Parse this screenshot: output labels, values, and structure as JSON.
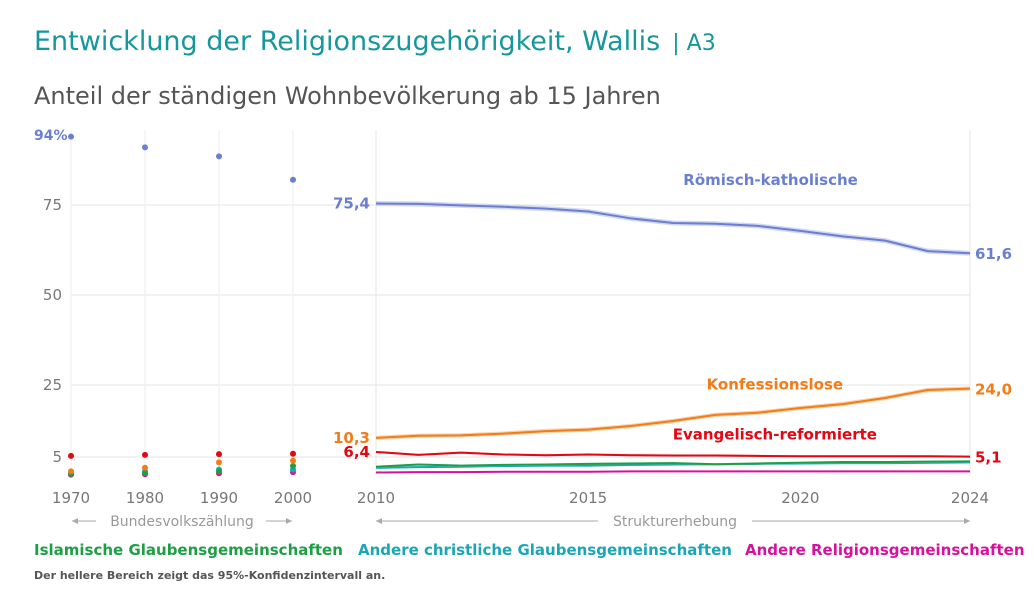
{
  "header": {
    "title": "Entwicklung der Religionszugehörigkeit, Wallis",
    "code": "A3",
    "subtitle": "Anteil der ständigen Wohnbevölkerung ab 15 Jahren"
  },
  "legend": {
    "items": [
      {
        "label": "Islamische Glaubensgemeinschaften",
        "color": "#1e9e45"
      },
      {
        "label": "Andere christliche Glaubensgemeinschaften",
        "color": "#1aa6b5"
      },
      {
        "label": "Andere Religionsgemeinschaften",
        "color": "#d6119c"
      }
    ],
    "note": "Der hellere Bereich zeigt das 95%-Konfidenzintervall an."
  },
  "chart_data": {
    "type": "line",
    "ylim": [
      0,
      100
    ],
    "y_ticks": [
      5,
      25,
      50,
      75
    ],
    "y_top_label": "94%",
    "grid": true,
    "periods": [
      {
        "label": "Bundesvolkszählung",
        "type": "scatter",
        "x_ticks": [
          "1970",
          "1980",
          "1990",
          "2000"
        ]
      },
      {
        "label": "Strukturerhebung",
        "type": "line",
        "x_ticks": [
          "2010",
          "2015",
          "2020",
          "2024"
        ]
      }
    ],
    "census_x": [
      1970,
      1980,
      1990,
      2000
    ],
    "survey_x": [
      2010,
      2011,
      2012,
      2013,
      2014,
      2015,
      2016,
      2017,
      2018,
      2019,
      2020,
      2021,
      2022,
      2023,
      2024
    ],
    "series": [
      {
        "name": "Römisch-katholische",
        "color": "#6b7fd1",
        "band_color": "#c9d0f0",
        "census": [
          94.0,
          91.0,
          88.5,
          82.0
        ],
        "values": [
          75.4,
          75.3,
          74.9,
          74.5,
          74.0,
          73.2,
          71.3,
          70.0,
          69.8,
          69.2,
          67.8,
          66.3,
          65.1,
          62.2,
          61.6
        ],
        "ci": 0.7,
        "start_label": "75,4",
        "end_label": "61,6"
      },
      {
        "name": "Konfessionslose",
        "color": "#f07d17",
        "band_color": "#f8c9a0",
        "census": [
          1.0,
          2.0,
          3.5,
          4.0
        ],
        "values": [
          10.3,
          10.9,
          11.0,
          11.5,
          12.2,
          12.6,
          13.6,
          15.0,
          16.7,
          17.3,
          18.6,
          19.7,
          21.4,
          23.6,
          24.0
        ],
        "ci": 0.6,
        "start_label": "10,3",
        "end_label": "24,0"
      },
      {
        "name": "Evangelisch-reformierte",
        "color": "#e30613",
        "band_color": "#f5b6b9",
        "census": [
          5.3,
          5.6,
          5.8,
          5.9
        ],
        "values": [
          6.4,
          5.6,
          6.2,
          5.7,
          5.5,
          5.7,
          5.5,
          5.4,
          5.4,
          5.3,
          5.2,
          5.2,
          5.2,
          5.2,
          5.1
        ],
        "ci": 0.3,
        "start_label": "6,4",
        "end_label": "5,1"
      },
      {
        "name": "Islamische Glaubensgemeinschaften",
        "color": "#1e9e45",
        "band_color": "#b5e0c3",
        "census": [
          0.3,
          0.5,
          1.0,
          2.5
        ],
        "values": [
          2.3,
          2.9,
          2.6,
          2.8,
          2.9,
          3.1,
          3.2,
          3.3,
          3.0,
          3.2,
          3.4,
          3.6,
          3.6,
          3.7,
          3.8
        ],
        "ci": 0.3
      },
      {
        "name": "Andere christliche Glaubensgemeinschaften",
        "color": "#1aa6b5",
        "band_color": "#b2e2e8",
        "census": [
          0.5,
          1.0,
          1.5,
          1.5
        ],
        "values": [
          2.0,
          2.2,
          2.3,
          2.5,
          2.6,
          2.6,
          2.8,
          2.9,
          3.0,
          3.1,
          3.2,
          3.3,
          3.3,
          3.4,
          3.5
        ],
        "ci": 0.3
      },
      {
        "name": "Andere Religionsgemeinschaften",
        "color": "#d6119c",
        "band_color": "#f0b3dc",
        "census": [
          0.1,
          0.2,
          0.5,
          0.8
        ],
        "values": [
          0.7,
          0.8,
          0.8,
          0.9,
          0.9,
          0.9,
          1.0,
          1.0,
          1.0,
          1.0,
          1.0,
          1.0,
          1.0,
          1.0,
          1.0
        ],
        "ci": 0.2
      }
    ],
    "annotations": [
      {
        "text": "Römisch-katholische",
        "series": "Römisch-katholische",
        "x": 2019.3,
        "y": 80.5
      },
      {
        "text": "Konfessionslose",
        "series": "Konfessionslose",
        "x": 2019.4,
        "y": 23.8
      },
      {
        "text": "Evangelisch-reformierte",
        "series": "Evangelisch-reformierte",
        "x": 2019.4,
        "y": 9.8
      }
    ]
  }
}
